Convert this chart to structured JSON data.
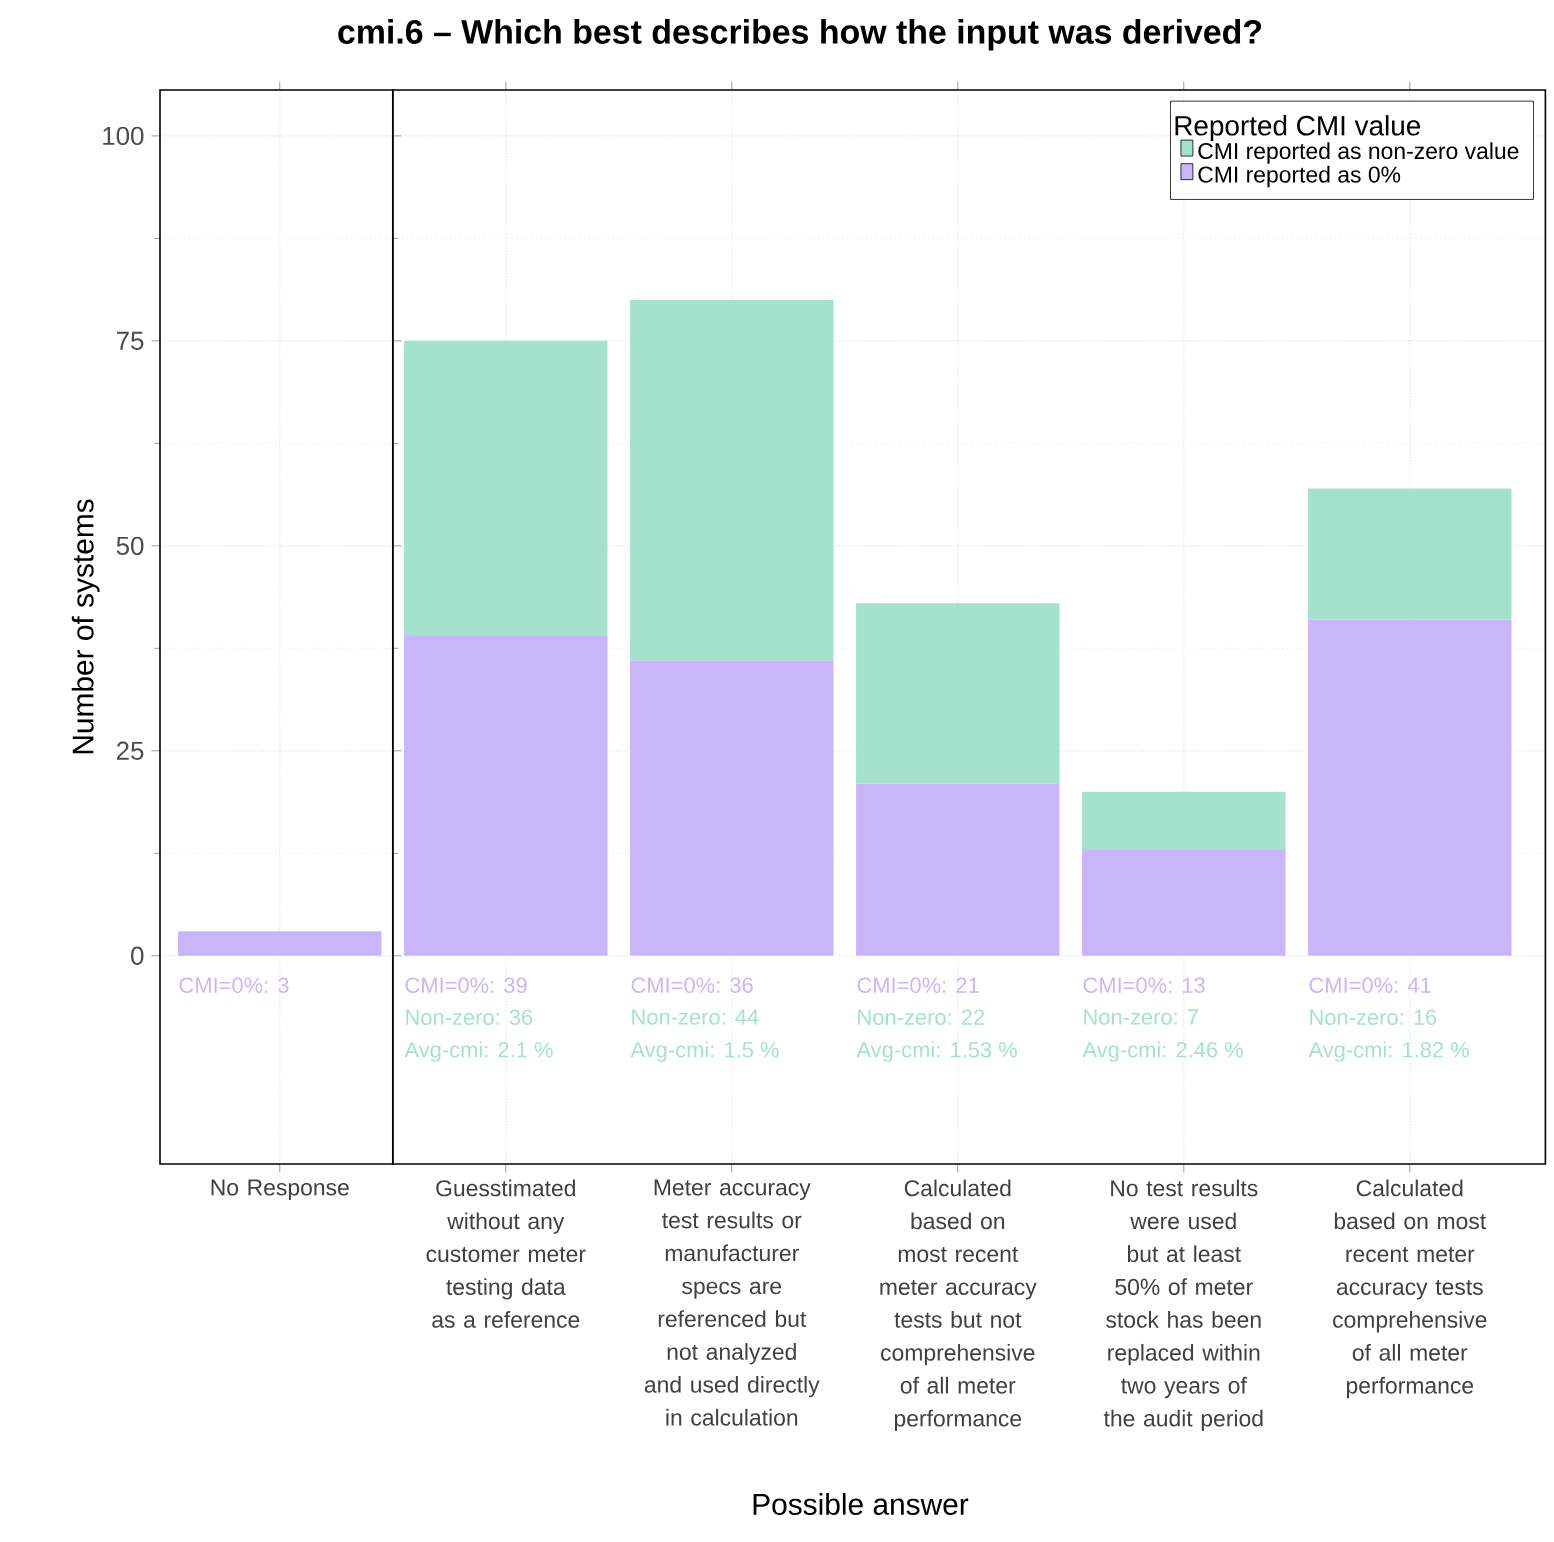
{
  "chart_data": [
    {
      "type": "bar",
      "stacked": true,
      "ylabel": "Number of systems",
      "grid": true,
      "categories": [
        "No Response"
      ],
      "ylim": [
        -25.4,
        105.6
      ],
      "yticks": [
        0,
        25,
        50,
        75,
        100
      ],
      "series": [
        {
          "color": "#c9b5f9",
          "values": [
            3
          ],
          "value_labels": [
            "CMI=0%: 3"
          ]
        }
      ]
    },
    {
      "type": "bar",
      "stacked": true,
      "title": "cmi.6 – Which best describes how the input was derived?",
      "xlabel": "Possible answer",
      "legend_title": "Reported CMI value",
      "legend": "top right",
      "grid": true,
      "tick_labels": "x",
      "categories": [
        "Guesstimated without any customer meter testing data as a reference",
        "Meter accuracy test results or manufacturer specs are referenced but not analyzed and used directly in calculation",
        "Calculated based on most recent meter accuracy tests but not comprehensive of all meter performance",
        "No test results were used but at least 50% of meter stock has been replaced within two years of the audit period",
        "Calculated based on most recent meter accuracy tests comprehensive of all meter performance"
      ],
      "ylim": [
        -25.4,
        105.6
      ],
      "yticks": [
        0,
        25,
        50,
        75,
        100
      ],
      "series": [
        {
          "name": "CMI reported as 0%",
          "color": "#c9b5f9",
          "values": [
            39,
            36,
            21,
            13,
            41
          ],
          "value_labels": [
            "CMI=0%: 39",
            "CMI=0%: 36",
            "CMI=0%: 21",
            "CMI=0%: 13",
            "CMI=0%: 41"
          ]
        },
        {
          "name": "CMI reported as non-zero value",
          "color": "#a3e2cd",
          "values": [
            36,
            44,
            22,
            7,
            16
          ]
        }
      ],
      "annotations": [
        "Non-zero: 36",
        "Avg-cmi: 2.1 %",
        "Non-zero: 44",
        "Avg-cmi: 1.5 %",
        "Non-zero: 22",
        "Avg-cmi: 1.53 %",
        "Non-zero: 7",
        "Avg-cmi: 2.46 %",
        "Non-zero: 16",
        "Avg-cmi: 1.82 %"
      ]
    }
  ]
}
